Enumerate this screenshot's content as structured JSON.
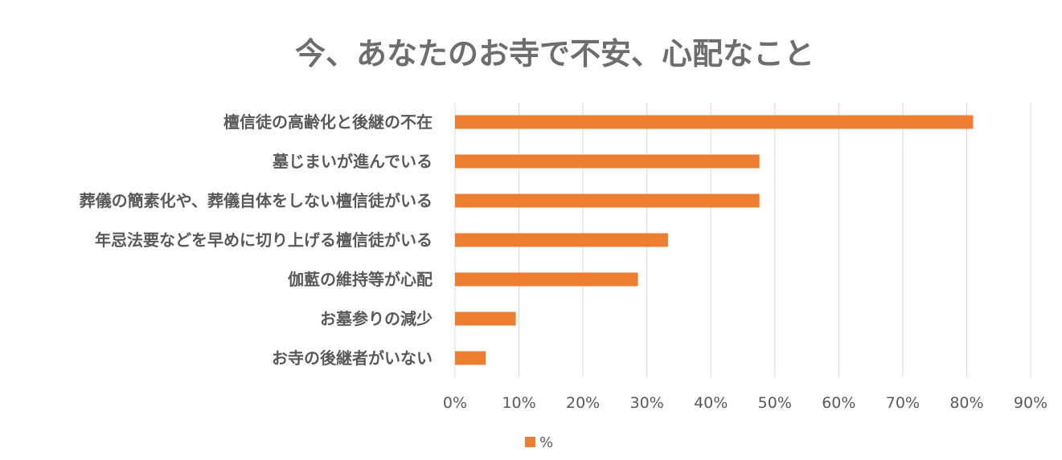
{
  "chart_data": {
    "type": "bar",
    "orientation": "horizontal",
    "title": "今、あなたのお寺で不安、心配なこと",
    "categories": [
      "檀信徒の高齢化と後継の不在",
      "墓じまいが進んでいる",
      "葬儀の簡素化や、葬儀自体をしない檀信徒がいる",
      "年忌法要などを早めに切り上げる檀信徒がいる",
      "伽藍の維持等が心配",
      "お墓参りの減少",
      "お寺の後継者がいない"
    ],
    "series": [
      {
        "name": "%",
        "values": [
          81,
          47.6,
          47.6,
          33.3,
          28.6,
          9.5,
          4.8
        ]
      }
    ],
    "xlim": [
      0,
      90
    ],
    "x_ticks": [
      "0%",
      "10%",
      "20%",
      "30%",
      "40%",
      "50%",
      "60%",
      "70%",
      "80%",
      "90%"
    ],
    "grid": true,
    "legend_position": "bottom",
    "bar_color": "#ed7d31"
  }
}
